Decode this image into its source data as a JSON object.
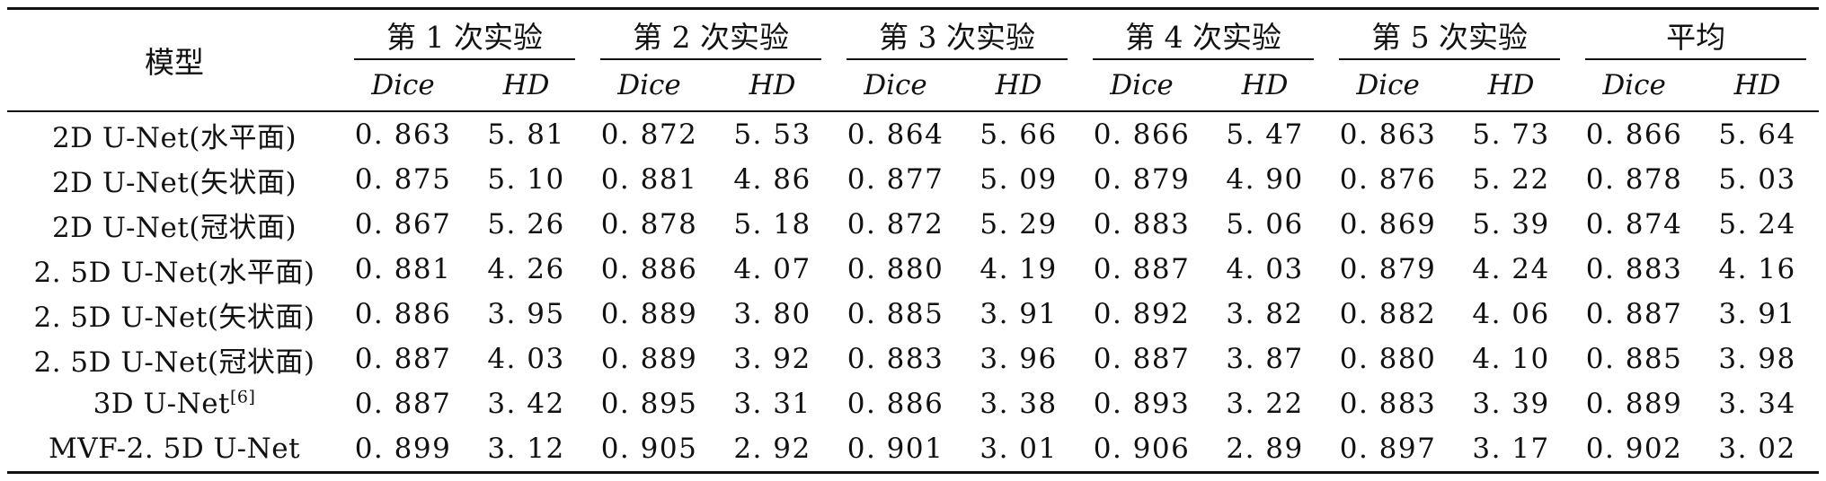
{
  "table": {
    "model_header": "模型",
    "groups": [
      "第 1 次实验",
      "第 2 次实验",
      "第 3 次实验",
      "第 4 次实验",
      "第 5 次实验",
      "平均"
    ],
    "metrics": [
      "Dice",
      "HD"
    ],
    "rows": [
      {
        "model": "2D U-Net(水平面)",
        "ref": "",
        "values": [
          "0. 863",
          "5. 81",
          "0. 872",
          "5. 53",
          "0. 864",
          "5. 66",
          "0. 866",
          "5. 47",
          "0. 863",
          "5. 73",
          "0. 866",
          "5. 64"
        ]
      },
      {
        "model": "2D U-Net(矢状面)",
        "ref": "",
        "values": [
          "0. 875",
          "5. 10",
          "0. 881",
          "4. 86",
          "0. 877",
          "5. 09",
          "0. 879",
          "4. 90",
          "0. 876",
          "5. 22",
          "0. 878",
          "5. 03"
        ]
      },
      {
        "model": "2D U-Net(冠状面)",
        "ref": "",
        "values": [
          "0. 867",
          "5. 26",
          "0. 878",
          "5. 18",
          "0. 872",
          "5. 29",
          "0. 883",
          "5. 06",
          "0. 869",
          "5. 39",
          "0. 874",
          "5. 24"
        ]
      },
      {
        "model": "2. 5D U-Net(水平面)",
        "ref": "",
        "values": [
          "0. 881",
          "4. 26",
          "0. 886",
          "4. 07",
          "0. 880",
          "4. 19",
          "0. 887",
          "4. 03",
          "0. 879",
          "4. 24",
          "0. 883",
          "4. 16"
        ]
      },
      {
        "model": "2. 5D U-Net(矢状面)",
        "ref": "",
        "values": [
          "0. 886",
          "3. 95",
          "0. 889",
          "3. 80",
          "0. 885",
          "3. 91",
          "0. 892",
          "3. 82",
          "0. 882",
          "4. 06",
          "0. 887",
          "3. 91"
        ]
      },
      {
        "model": "2. 5D U-Net(冠状面)",
        "ref": "",
        "values": [
          "0. 887",
          "4. 03",
          "0. 889",
          "3. 92",
          "0. 883",
          "3. 96",
          "0. 887",
          "3. 87",
          "0. 880",
          "4. 10",
          "0. 885",
          "3. 98"
        ]
      },
      {
        "model": "3D U-Net",
        "ref": "[6]",
        "values": [
          "0. 887",
          "3. 42",
          "0. 895",
          "3. 31",
          "0. 886",
          "3. 38",
          "0. 893",
          "3. 22",
          "0. 883",
          "3. 39",
          "0. 889",
          "3. 34"
        ]
      },
      {
        "model": "MVF-2. 5D U-Net",
        "ref": "",
        "values": [
          "0. 899",
          "3. 12",
          "0. 905",
          "2. 92",
          "0. 901",
          "3. 01",
          "0. 906",
          "2. 89",
          "0. 897",
          "3. 17",
          "0. 902",
          "3. 02"
        ]
      }
    ]
  }
}
